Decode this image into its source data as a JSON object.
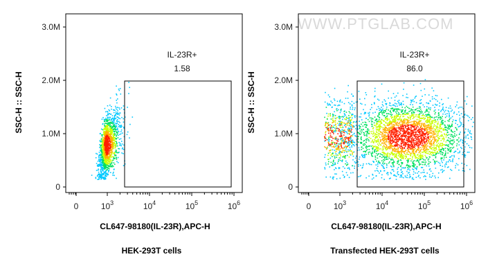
{
  "watermark": "WWW.PTGLAB.COM",
  "chart_data": [
    {
      "type": "scatter",
      "title": "HEK-293T cells",
      "xlabel": "CL647-98180(IL-23R),APC-H",
      "ylabel": "SSC-H :: SSC-H",
      "xscale": "biexponential",
      "x_ticks": [
        {
          "value": 0,
          "label": "0"
        },
        {
          "value": 1000,
          "label": "10",
          "exp": "3"
        },
        {
          "value": 10000,
          "label": "10",
          "exp": "4"
        },
        {
          "value": 100000,
          "label": "10",
          "exp": "5"
        },
        {
          "value": 1000000,
          "label": "10",
          "exp": "6"
        }
      ],
      "y_ticks": [
        {
          "value": 0,
          "label": "0"
        },
        {
          "value": 1000000,
          "label": "1.0M"
        },
        {
          "value": 2000000,
          "label": "2.0M"
        },
        {
          "value": 3000000,
          "label": "3.0M"
        }
      ],
      "ylim": [
        0,
        3300000
      ],
      "gate": {
        "name": "IL-23R+",
        "percent": "1.58",
        "x_range": [
          2000,
          1000000
        ],
        "y_range": [
          0,
          2000000
        ]
      },
      "population": {
        "center_x": 900,
        "center_y": 800000,
        "spread_log_x": 0.18,
        "spread_y": 280000,
        "positive_fraction": 0.0158
      }
    },
    {
      "type": "scatter",
      "title": "Transfected HEK-293T cells",
      "xlabel": "CL647-98180(IL-23R),APC-H",
      "ylabel": "SSC-H :: SSC-H",
      "xscale": "biexponential",
      "x_ticks": [
        {
          "value": 0,
          "label": "0"
        },
        {
          "value": 1000,
          "label": "10",
          "exp": "3"
        },
        {
          "value": 10000,
          "label": "10",
          "exp": "4"
        },
        {
          "value": 100000,
          "label": "10",
          "exp": "5"
        },
        {
          "value": 1000000,
          "label": "10",
          "exp": "6"
        }
      ],
      "y_ticks": [
        {
          "value": 0,
          "label": "0"
        },
        {
          "value": 1000000,
          "label": "1.0M"
        },
        {
          "value": 2000000,
          "label": "2.0M"
        },
        {
          "value": 3000000,
          "label": "3.0M"
        }
      ],
      "ylim": [
        0,
        3300000
      ],
      "gate": {
        "name": "IL-23R+",
        "percent": "86.0",
        "x_range": [
          2000,
          1000000
        ],
        "y_range": [
          0,
          2000000
        ]
      },
      "population": {
        "center_x": 40000,
        "center_y": 950000,
        "spread_log_x": 0.7,
        "spread_y": 330000,
        "positive_fraction": 0.86
      }
    }
  ]
}
